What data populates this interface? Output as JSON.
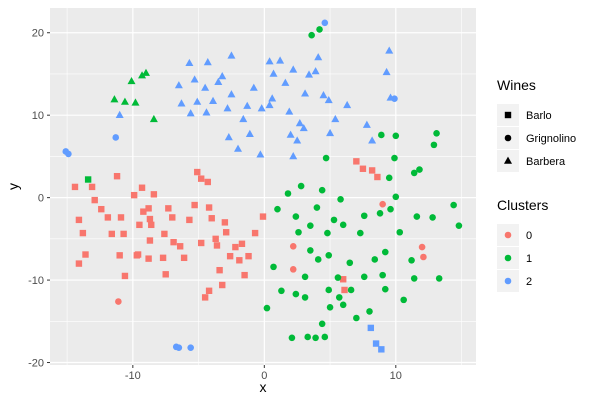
{
  "chart_data": {
    "type": "scatter",
    "xlabel": "x",
    "ylabel": "y",
    "xlim": [
      -16.3,
      16.1
    ],
    "ylim": [
      -20.3,
      23.0
    ],
    "x_ticks": [
      -10,
      0,
      10
    ],
    "y_ticks": [
      -20,
      -10,
      0,
      10,
      20
    ],
    "grid": true,
    "panel_background": "#ebebeb",
    "shape_legend": {
      "title": "Wines",
      "entries": [
        {
          "label": "Barlo",
          "shape": "square"
        },
        {
          "label": "Grignolino",
          "shape": "circle"
        },
        {
          "label": "Barbera",
          "shape": "triangle"
        }
      ]
    },
    "color_legend": {
      "title": "Clusters",
      "entries": [
        {
          "label": "0",
          "color": "#F8766D"
        },
        {
          "label": "1",
          "color": "#00BA38"
        },
        {
          "label": "2",
          "color": "#619CFF"
        }
      ]
    },
    "points": [
      [
        -14.4,
        1.3,
        "square",
        0
      ],
      [
        -13.1,
        1.3,
        "square",
        0
      ],
      [
        -12.9,
        -0.3,
        "square",
        0
      ],
      [
        -13.8,
        -4.3,
        "square",
        0
      ],
      [
        -14.1,
        -2.7,
        "square",
        0
      ],
      [
        -14.1,
        -8.0,
        "square",
        0
      ],
      [
        -13.6,
        -6.9,
        "square",
        0
      ],
      [
        -12.4,
        -1.4,
        "square",
        0
      ],
      [
        -11.9,
        -2.4,
        "square",
        0
      ],
      [
        -11.6,
        -4.4,
        "square",
        0
      ],
      [
        -11.2,
        2.6,
        "square",
        0
      ],
      [
        -10.9,
        -2.4,
        "square",
        0
      ],
      [
        -10.7,
        -4.4,
        "square",
        0
      ],
      [
        -10.6,
        -9.5,
        "square",
        0
      ],
      [
        -11.0,
        -7.0,
        "square",
        0
      ],
      [
        -9.9,
        0.3,
        "square",
        0
      ],
      [
        -9.5,
        -3.3,
        "square",
        0
      ],
      [
        -9.2,
        -1.7,
        "square",
        0
      ],
      [
        -9.6,
        -6.9,
        "square",
        0
      ],
      [
        -9.3,
        1.2,
        "square",
        0
      ],
      [
        -8.8,
        -1.3,
        "square",
        0
      ],
      [
        -8.7,
        -5.2,
        "square",
        0
      ],
      [
        -8.8,
        -7.4,
        "square",
        0
      ],
      [
        -8.6,
        -3.3,
        "square",
        0
      ],
      [
        -8.7,
        -2.6,
        "square",
        0
      ],
      [
        -8.4,
        0.4,
        "square",
        0
      ],
      [
        -7.6,
        -4.4,
        "square",
        0
      ],
      [
        -7.7,
        -7.3,
        "square",
        0
      ],
      [
        -7.5,
        -9.3,
        "square",
        0
      ],
      [
        -7.3,
        -1.3,
        "square",
        0
      ],
      [
        -6.9,
        -5.4,
        "square",
        0
      ],
      [
        -6.4,
        -5.9,
        "square",
        0
      ],
      [
        -6.1,
        -7.3,
        "square",
        0
      ],
      [
        -5.7,
        -2.7,
        "square",
        0
      ],
      [
        -5.3,
        -0.9,
        "square",
        0
      ],
      [
        -5.1,
        3.1,
        "square",
        0
      ],
      [
        -4.8,
        2.3,
        "square",
        0
      ],
      [
        -4.8,
        -5.5,
        "square",
        0
      ],
      [
        -4.3,
        1.9,
        "square",
        0
      ],
      [
        -4.2,
        -1.2,
        "square",
        0
      ],
      [
        -4.0,
        -2.5,
        "square",
        0
      ],
      [
        -3.7,
        -5.0,
        "square",
        0
      ],
      [
        -3.6,
        -5.8,
        "square",
        0
      ],
      [
        -3.4,
        -8.8,
        "square",
        0
      ],
      [
        -3.0,
        -3.0,
        "square",
        0
      ],
      [
        -2.9,
        -4.2,
        "square",
        0
      ],
      [
        -2.6,
        -7.1,
        "square",
        0
      ],
      [
        -2.2,
        -6.0,
        "square",
        0
      ],
      [
        -1.9,
        -7.6,
        "square",
        0
      ],
      [
        -1.7,
        -5.6,
        "square",
        0
      ],
      [
        -1.5,
        -9.4,
        "square",
        0
      ],
      [
        -1.2,
        -7.1,
        "square",
        0
      ],
      [
        -0.7,
        -4.3,
        "square",
        0
      ],
      [
        -0.1,
        -2.3,
        "square",
        0
      ],
      [
        -9.7,
        -7.0,
        "square",
        0
      ],
      [
        -7.0,
        -2.4,
        "square",
        0
      ],
      [
        -4.5,
        -12.1,
        "square",
        0
      ],
      [
        -4.2,
        -11.3,
        "square",
        0
      ],
      [
        -3.2,
        -10.6,
        "square",
        0
      ],
      [
        6.0,
        -9.9,
        "square",
        0
      ],
      [
        6.1,
        -11.2,
        "square",
        0
      ],
      [
        7.0,
        4.4,
        "square",
        0
      ],
      [
        7.5,
        3.5,
        "square",
        0
      ],
      [
        8.2,
        3.3,
        "square",
        0
      ],
      [
        8.6,
        2.5,
        "square",
        0
      ],
      [
        -11.1,
        -12.6,
        "circle",
        0
      ],
      [
        2.2,
        -5.9,
        "circle",
        0
      ],
      [
        2.2,
        -8.7,
        "circle",
        0
      ],
      [
        9.0,
        -0.8,
        "circle",
        0
      ],
      [
        12.0,
        -6.0,
        "circle",
        0
      ],
      [
        12.1,
        -7.2,
        "circle",
        0
      ],
      [
        0.2,
        -13.4,
        "circle",
        1
      ],
      [
        0.7,
        -8.4,
        "circle",
        1
      ],
      [
        1.0,
        -1.4,
        "circle",
        1
      ],
      [
        1.3,
        -11.3,
        "circle",
        1
      ],
      [
        1.8,
        0.5,
        "circle",
        1
      ],
      [
        2.1,
        -17.0,
        "circle",
        1
      ],
      [
        2.4,
        -11.7,
        "circle",
        1
      ],
      [
        2.4,
        -2.3,
        "circle",
        1
      ],
      [
        2.6,
        -4.2,
        "circle",
        1
      ],
      [
        2.8,
        1.4,
        "circle",
        1
      ],
      [
        3.1,
        -9.6,
        "circle",
        1
      ],
      [
        3.1,
        -12.1,
        "circle",
        1
      ],
      [
        3.3,
        -16.9,
        "circle",
        1
      ],
      [
        3.5,
        -6.4,
        "circle",
        1
      ],
      [
        3.5,
        -3.4,
        "circle",
        1
      ],
      [
        3.9,
        -17.0,
        "circle",
        1
      ],
      [
        4.0,
        -1.2,
        "circle",
        1
      ],
      [
        4.1,
        -7.5,
        "circle",
        1
      ],
      [
        4.4,
        -15.3,
        "circle",
        1
      ],
      [
        4.4,
        0.9,
        "circle",
        1
      ],
      [
        4.6,
        -16.9,
        "circle",
        1
      ],
      [
        4.7,
        4.8,
        "circle",
        1
      ],
      [
        4.8,
        -4.3,
        "circle",
        1
      ],
      [
        4.9,
        -11.2,
        "circle",
        1
      ],
      [
        4.9,
        -7.0,
        "circle",
        1
      ],
      [
        5.0,
        -13.3,
        "circle",
        1
      ],
      [
        5.3,
        -2.7,
        "circle",
        1
      ],
      [
        5.6,
        -9.7,
        "circle",
        1
      ],
      [
        5.7,
        -12.1,
        "circle",
        1
      ],
      [
        5.8,
        -0.2,
        "circle",
        1
      ],
      [
        6.0,
        -13.0,
        "circle",
        1
      ],
      [
        6.0,
        -3.3,
        "circle",
        1
      ],
      [
        6.5,
        -7.9,
        "circle",
        1
      ],
      [
        6.6,
        -11.2,
        "circle",
        1
      ],
      [
        7.0,
        -14.6,
        "circle",
        1
      ],
      [
        7.3,
        -4.3,
        "circle",
        1
      ],
      [
        7.6,
        -9.6,
        "circle",
        1
      ],
      [
        7.6,
        -2.2,
        "circle",
        1
      ],
      [
        8.0,
        -13.8,
        "circle",
        1
      ],
      [
        8.4,
        -7.5,
        "circle",
        1
      ],
      [
        8.8,
        -1.9,
        "circle",
        1
      ],
      [
        8.9,
        7.6,
        "circle",
        1
      ],
      [
        9.0,
        -9.4,
        "circle",
        1
      ],
      [
        9.2,
        -11.1,
        "circle",
        1
      ],
      [
        9.2,
        -6.6,
        "circle",
        1
      ],
      [
        9.5,
        2.4,
        "circle",
        1
      ],
      [
        9.6,
        -1.4,
        "circle",
        1
      ],
      [
        9.9,
        4.8,
        "circle",
        1
      ],
      [
        10.0,
        0.1,
        "circle",
        1
      ],
      [
        10.0,
        7.5,
        "circle",
        1
      ],
      [
        10.3,
        -4.2,
        "circle",
        1
      ],
      [
        10.6,
        -12.4,
        "circle",
        1
      ],
      [
        11.2,
        -7.6,
        "circle",
        1
      ],
      [
        11.4,
        3.0,
        "circle",
        1
      ],
      [
        11.4,
        -9.8,
        "circle",
        1
      ],
      [
        11.6,
        -2.3,
        "circle",
        1
      ],
      [
        11.8,
        3.4,
        "circle",
        1
      ],
      [
        12.8,
        -2.4,
        "circle",
        1
      ],
      [
        12.9,
        6.4,
        "circle",
        1
      ],
      [
        13.1,
        7.8,
        "circle",
        1
      ],
      [
        13.3,
        -9.8,
        "circle",
        1
      ],
      [
        14.4,
        -0.9,
        "circle",
        1
      ],
      [
        14.8,
        -3.4,
        "circle",
        1
      ],
      [
        3.6,
        19.7,
        "circle",
        1
      ],
      [
        4.2,
        20.4,
        "circle",
        1
      ],
      [
        -13.4,
        2.2,
        "square",
        1
      ],
      [
        -15.1,
        5.6,
        "circle",
        2
      ],
      [
        -14.9,
        5.3,
        "circle",
        2
      ],
      [
        -11.3,
        7.3,
        "circle",
        2
      ],
      [
        -6.7,
        -18.1,
        "circle",
        2
      ],
      [
        -6.5,
        -18.2,
        "circle",
        2
      ],
      [
        -5.6,
        -18.2,
        "circle",
        2
      ],
      [
        4.6,
        21.2,
        "circle",
        2
      ],
      [
        9.9,
        12.0,
        "circle",
        2
      ],
      [
        2.2,
        5.0,
        "triangle",
        2
      ],
      [
        0.4,
        16.5,
        "triangle",
        2
      ],
      [
        0.7,
        15.0,
        "triangle",
        2
      ],
      [
        0.6,
        12.0,
        "triangle",
        2
      ],
      [
        1.2,
        16.6,
        "triangle",
        2
      ],
      [
        0.4,
        11.2,
        "triangle",
        2
      ],
      [
        1.6,
        13.9,
        "triangle",
        2
      ],
      [
        1.9,
        10.4,
        "triangle",
        2
      ],
      [
        2.2,
        15.5,
        "triangle",
        2
      ],
      [
        2.0,
        7.6,
        "triangle",
        2
      ],
      [
        2.5,
        6.9,
        "triangle",
        2
      ],
      [
        2.7,
        9.0,
        "triangle",
        2
      ],
      [
        3.0,
        8.4,
        "triangle",
        2
      ],
      [
        3.1,
        12.6,
        "triangle",
        2
      ],
      [
        3.4,
        14.9,
        "triangle",
        2
      ],
      [
        3.9,
        15.3,
        "triangle",
        2
      ],
      [
        4.1,
        17.0,
        "triangle",
        2
      ],
      [
        4.5,
        12.4,
        "triangle",
        2
      ],
      [
        4.9,
        11.8,
        "triangle",
        2
      ],
      [
        5.0,
        7.8,
        "triangle",
        2
      ],
      [
        5.4,
        9.5,
        "triangle",
        2
      ],
      [
        6.3,
        11.2,
        "triangle",
        2
      ],
      [
        7.8,
        8.8,
        "triangle",
        2
      ],
      [
        8.2,
        6.9,
        "triangle",
        2
      ],
      [
        9.3,
        15.2,
        "triangle",
        2
      ],
      [
        9.6,
        12.1,
        "triangle",
        2
      ],
      [
        9.5,
        17.8,
        "triangle",
        2
      ],
      [
        -0.8,
        13.3,
        "triangle",
        2
      ],
      [
        -0.2,
        10.8,
        "triangle",
        2
      ],
      [
        -0.3,
        5.2,
        "triangle",
        2
      ],
      [
        -1.1,
        7.7,
        "triangle",
        2
      ],
      [
        -1.3,
        11.1,
        "triangle",
        2
      ],
      [
        -1.6,
        9.5,
        "triangle",
        2
      ],
      [
        -2.0,
        5.9,
        "triangle",
        2
      ],
      [
        -2.5,
        17.2,
        "triangle",
        2
      ],
      [
        -2.5,
        12.5,
        "triangle",
        2
      ],
      [
        -2.7,
        7.3,
        "triangle",
        2
      ],
      [
        -2.8,
        10.8,
        "triangle",
        2
      ],
      [
        -3.2,
        14.7,
        "triangle",
        2
      ],
      [
        -3.9,
        11.7,
        "triangle",
        2
      ],
      [
        -4.4,
        10.3,
        "triangle",
        2
      ],
      [
        -4.5,
        13.3,
        "triangle",
        2
      ],
      [
        -5.1,
        11.6,
        "triangle",
        2
      ],
      [
        -5.3,
        14.3,
        "triangle",
        2
      ],
      [
        -5.7,
        16.3,
        "triangle",
        2
      ],
      [
        -5.6,
        10.2,
        "triangle",
        2
      ],
      [
        -6.3,
        11.4,
        "triangle",
        2
      ],
      [
        -6.5,
        13.6,
        "triangle",
        2
      ],
      [
        -4.3,
        16.4,
        "triangle",
        2
      ],
      [
        -3.5,
        14.0,
        "triangle",
        2
      ],
      [
        8.1,
        -15.8,
        "square",
        2
      ],
      [
        8.5,
        -17.7,
        "square",
        2
      ],
      [
        8.9,
        -18.4,
        "square",
        2
      ],
      [
        -11.0,
        10.0,
        "triangle",
        2
      ],
      [
        -11.4,
        11.9,
        "triangle",
        1
      ],
      [
        -10.6,
        11.6,
        "triangle",
        1
      ],
      [
        -9.8,
        11.5,
        "triangle",
        1
      ],
      [
        -10.1,
        14.1,
        "triangle",
        1
      ],
      [
        -9.3,
        14.8,
        "triangle",
        1
      ],
      [
        -9.0,
        15.1,
        "triangle",
        1
      ],
      [
        -8.4,
        9.5,
        "triangle",
        1
      ]
    ]
  }
}
